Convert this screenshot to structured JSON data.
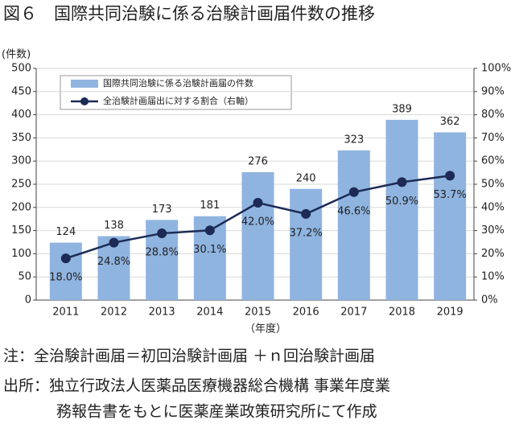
{
  "chart_data": {
    "type": "bar",
    "title": "図６　国際共同治験に係る治験計画届件数の推移",
    "y_label": "(件数)",
    "x_label": "（年度）",
    "categories": [
      "2011",
      "2012",
      "2013",
      "2014",
      "2015",
      "2016",
      "2017",
      "2018",
      "2019"
    ],
    "series": [
      {
        "name": "国際共同治験に係る治験計画届の件数",
        "type": "bar",
        "color": "#8fb4e0",
        "values": [
          124,
          138,
          173,
          181,
          276,
          240,
          323,
          389,
          362
        ]
      },
      {
        "name": "全治験計画届出に対する割合（右軸）",
        "type": "line",
        "axis": "y2",
        "color": "#1c2a55",
        "values": [
          18.0,
          24.8,
          28.8,
          30.1,
          42.0,
          37.2,
          46.6,
          50.9,
          53.7
        ],
        "value_labels": [
          "18.0%",
          "24.8%",
          "28.8%",
          "30.1%",
          "42.0%",
          "37.2%",
          "46.6%",
          "50.9%",
          "53.7%"
        ]
      }
    ],
    "ylim": [
      0,
      500
    ],
    "yticks": [
      0,
      50,
      100,
      150,
      200,
      250,
      300,
      350,
      400,
      450,
      500
    ],
    "y2lim": [
      0,
      100
    ],
    "y2ticks": [
      {
        "value": 0,
        "label": "0%"
      },
      {
        "value": 10,
        "label": "10%"
      },
      {
        "value": 20,
        "label": "20%"
      },
      {
        "value": 30,
        "label": "30%"
      },
      {
        "value": 40,
        "label": "40%"
      },
      {
        "value": 50,
        "label": "50%"
      },
      {
        "value": 60,
        "label": "60%"
      },
      {
        "value": 70,
        "label": "70%"
      },
      {
        "value": 80,
        "label": "80%"
      },
      {
        "value": 90,
        "label": "90%"
      },
      {
        "value": 100,
        "label": "100%"
      }
    ],
    "grid": true,
    "legend": "top-left",
    "note": "注：全治験計画届＝初回治験計画届 ＋ｎ回治験計画届",
    "source": [
      "出所：独立行政法人医薬品医療機器総合機構 事業年度業",
      "務報告書をもとに医薬産業政策研究所にて作成"
    ]
  }
}
